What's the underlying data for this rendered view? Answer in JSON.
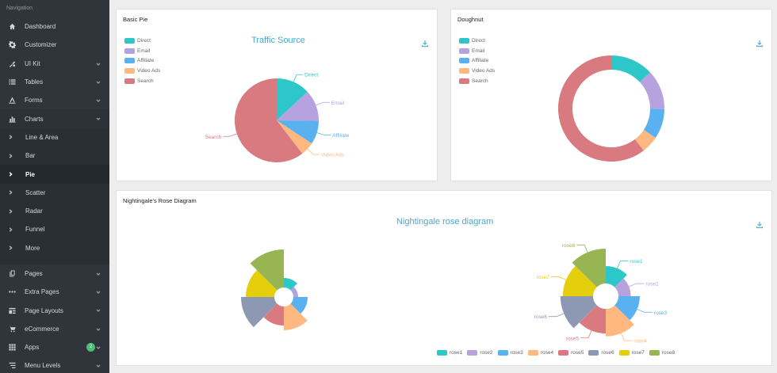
{
  "sidebar": {
    "header": "Navigation",
    "items": [
      {
        "label": "Dashboard",
        "icon": "home-icon",
        "chev": false
      },
      {
        "label": "Customizer",
        "icon": "gear-icon",
        "chev": false
      },
      {
        "label": "UI Kit",
        "icon": "ui-kit-icon",
        "chev": true
      },
      {
        "label": "Tables",
        "icon": "list-icon",
        "chev": true
      },
      {
        "label": "Forms",
        "icon": "forms-icon",
        "chev": true
      },
      {
        "label": "Charts",
        "icon": "bar-chart-icon",
        "chev": true,
        "open": true
      }
    ],
    "sub_items": [
      {
        "label": "Line & Area",
        "active": false
      },
      {
        "label": "Bar",
        "active": false
      },
      {
        "label": "Pie",
        "active": true
      },
      {
        "label": "Scatter",
        "active": false
      },
      {
        "label": "Radar",
        "active": false
      },
      {
        "label": "Funnel",
        "active": false
      },
      {
        "label": "More",
        "active": false
      }
    ],
    "items2": [
      {
        "label": "Pages",
        "icon": "pages-icon",
        "chev": true
      },
      {
        "label": "Extra Pages",
        "icon": "dots-icon",
        "chev": true
      },
      {
        "label": "Page Layouts",
        "icon": "layouts-icon",
        "chev": true
      },
      {
        "label": "eCommerce",
        "icon": "cart-icon",
        "chev": true
      },
      {
        "label": "Apps",
        "icon": "grid-icon",
        "chev": true,
        "badge": "2"
      },
      {
        "label": "Menu Levels",
        "icon": "levels-icon",
        "chev": true
      }
    ]
  },
  "colors": {
    "direct": "#2ec7c9",
    "email": "#b6a2de",
    "affiliate": "#5ab1ef",
    "video_ads": "#ffb980",
    "search": "#d87a80"
  },
  "cards": {
    "basic_pie": {
      "title": "Basic Pie",
      "chart_title": "Traffic Source"
    },
    "doughnut": {
      "title": "Doughnut"
    },
    "rose": {
      "title": "Nightingale's Rose Diagram",
      "chart_title": "Nightingale rose diagram"
    }
  },
  "chart_data": [
    {
      "type": "pie",
      "title": "Traffic Source",
      "categories": [
        "Direct",
        "Email",
        "Affiliate",
        "Video Ads",
        "Search"
      ],
      "values": [
        335,
        310,
        234,
        135,
        1548
      ],
      "colors": [
        "#2ec7c9",
        "#b6a2de",
        "#5ab1ef",
        "#ffb980",
        "#d87a80"
      ],
      "legend": "top-left"
    },
    {
      "type": "pie",
      "subtype": "doughnut",
      "categories": [
        "Direct",
        "Email",
        "Affiliate",
        "Video Ads",
        "Search"
      ],
      "values": [
        335,
        310,
        234,
        135,
        1548
      ],
      "colors": [
        "#2ec7c9",
        "#b6a2de",
        "#5ab1ef",
        "#ffb980",
        "#d87a80"
      ],
      "legend": "top-left"
    },
    {
      "type": "pie",
      "subtype": "rose-radius",
      "title": "Nightingale rose diagram",
      "categories": [
        "rose1",
        "rose2",
        "rose3",
        "rose4",
        "rose5",
        "rose6",
        "rose7",
        "rose8"
      ],
      "values": [
        10,
        5,
        15,
        25,
        20,
        35,
        30,
        40
      ],
      "colors": [
        "#2ec7c9",
        "#b6a2de",
        "#5ab1ef",
        "#ffb980",
        "#d87a80",
        "#8d98b3",
        "#e5cf0d",
        "#97b552"
      ],
      "legend": "bottom-center"
    },
    {
      "type": "pie",
      "subtype": "rose-area",
      "title": "Nightingale rose diagram",
      "categories": [
        "rose1",
        "rose2",
        "rose3",
        "rose4",
        "rose5",
        "rose6",
        "rose7",
        "rose8"
      ],
      "values": [
        10,
        5,
        15,
        25,
        20,
        35,
        30,
        40
      ],
      "colors": [
        "#2ec7c9",
        "#b6a2de",
        "#5ab1ef",
        "#ffb980",
        "#d87a80",
        "#8d98b3",
        "#e5cf0d",
        "#97b552"
      ],
      "legend": "bottom-center"
    }
  ]
}
